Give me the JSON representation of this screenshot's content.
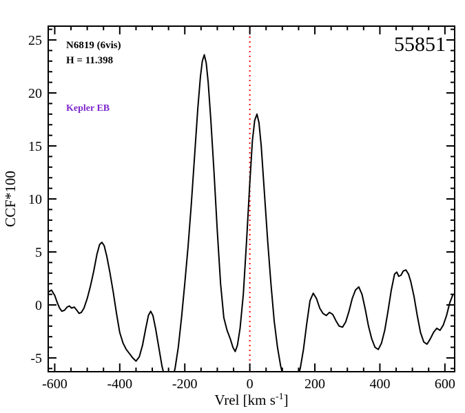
{
  "chart_data": {
    "type": "line",
    "title": "",
    "xlabel": {
      "main": "Vrel [km s",
      "sup": "-1",
      "end": "]"
    },
    "ylabel": "CCF*100",
    "xlim": [
      -620,
      630
    ],
    "ylim": [
      -6.3,
      26.3
    ],
    "x_major_ticks": [
      -600,
      -400,
      -200,
      0,
      200,
      400,
      600
    ],
    "x_minor_step": 50,
    "y_major_ticks": [
      -5,
      0,
      5,
      10,
      15,
      20,
      25
    ],
    "y_minor_step": 1,
    "grid": false,
    "legend": "none",
    "annotations": {
      "cluster": "N6819 (6vis)",
      "magnitude": "H = 11.398",
      "classification": "Kepler EB",
      "classification_color": "#7D26CD",
      "mjd": "55851"
    },
    "reference_line": {
      "x": 0,
      "color": "#FF0000",
      "style": "dotted"
    },
    "series": [
      {
        "name": "CCF",
        "color": "#000000",
        "points": [
          [
            -620,
            1.2
          ],
          [
            -610,
            1.4
          ],
          [
            -600,
            0.9
          ],
          [
            -592,
            0.2
          ],
          [
            -585,
            -0.3
          ],
          [
            -578,
            -0.6
          ],
          [
            -570,
            -0.5
          ],
          [
            -562,
            -0.2
          ],
          [
            -555,
            -0.1
          ],
          [
            -548,
            -0.3
          ],
          [
            -540,
            -0.2
          ],
          [
            -532,
            -0.5
          ],
          [
            -525,
            -0.8
          ],
          [
            -518,
            -0.7
          ],
          [
            -510,
            -0.3
          ],
          [
            -500,
            0.6
          ],
          [
            -490,
            1.8
          ],
          [
            -480,
            3.2
          ],
          [
            -470,
            4.8
          ],
          [
            -462,
            5.7
          ],
          [
            -455,
            5.9
          ],
          [
            -448,
            5.6
          ],
          [
            -440,
            4.6
          ],
          [
            -430,
            3.0
          ],
          [
            -420,
            1.2
          ],
          [
            -410,
            -0.8
          ],
          [
            -400,
            -2.6
          ],
          [
            -390,
            -3.6
          ],
          [
            -380,
            -4.2
          ],
          [
            -370,
            -4.6
          ],
          [
            -360,
            -5.0
          ],
          [
            -350,
            -5.3
          ],
          [
            -340,
            -4.9
          ],
          [
            -330,
            -3.8
          ],
          [
            -320,
            -2.2
          ],
          [
            -312,
            -1.0
          ],
          [
            -305,
            -0.6
          ],
          [
            -298,
            -1.0
          ],
          [
            -290,
            -2.2
          ],
          [
            -280,
            -4.0
          ],
          [
            -270,
            -5.8
          ],
          [
            -260,
            -7.0
          ],
          [
            -250,
            -7.6
          ],
          [
            -240,
            -7.2
          ],
          [
            -230,
            -6.0
          ],
          [
            -220,
            -4.0
          ],
          [
            -210,
            -1.2
          ],
          [
            -200,
            2.0
          ],
          [
            -190,
            5.5
          ],
          [
            -180,
            9.5
          ],
          [
            -170,
            14.0
          ],
          [
            -160,
            18.5
          ],
          [
            -152,
            21.5
          ],
          [
            -146,
            23.0
          ],
          [
            -140,
            23.6
          ],
          [
            -134,
            22.8
          ],
          [
            -128,
            21.0
          ],
          [
            -120,
            17.5
          ],
          [
            -110,
            12.5
          ],
          [
            -100,
            7.0
          ],
          [
            -90,
            2.0
          ],
          [
            -80,
            -1.2
          ],
          [
            -70,
            -2.4
          ],
          [
            -60,
            -3.2
          ],
          [
            -52,
            -4.0
          ],
          [
            -45,
            -4.4
          ],
          [
            -38,
            -3.8
          ],
          [
            -30,
            -2.2
          ],
          [
            -20,
            1.0
          ],
          [
            -10,
            6.0
          ],
          [
            0,
            11.5
          ],
          [
            8,
            15.5
          ],
          [
            15,
            17.4
          ],
          [
            22,
            18.0
          ],
          [
            28,
            17.2
          ],
          [
            35,
            15.0
          ],
          [
            45,
            10.5
          ],
          [
            55,
            6.0
          ],
          [
            65,
            2.0
          ],
          [
            75,
            -1.5
          ],
          [
            85,
            -4.0
          ],
          [
            95,
            -5.8
          ],
          [
            105,
            -7.0
          ],
          [
            115,
            -7.8
          ],
          [
            125,
            -8.0
          ],
          [
            135,
            -7.6
          ],
          [
            145,
            -7.0
          ],
          [
            155,
            -6.0
          ],
          [
            165,
            -4.2
          ],
          [
            175,
            -1.8
          ],
          [
            185,
            0.4
          ],
          [
            195,
            1.1
          ],
          [
            205,
            0.6
          ],
          [
            215,
            -0.3
          ],
          [
            225,
            -0.8
          ],
          [
            235,
            -1.0
          ],
          [
            245,
            -0.7
          ],
          [
            255,
            -0.9
          ],
          [
            265,
            -1.5
          ],
          [
            275,
            -2.0
          ],
          [
            285,
            -2.1
          ],
          [
            295,
            -1.6
          ],
          [
            305,
            -0.6
          ],
          [
            315,
            0.6
          ],
          [
            325,
            1.4
          ],
          [
            335,
            1.7
          ],
          [
            345,
            1.0
          ],
          [
            355,
            -0.4
          ],
          [
            365,
            -2.0
          ],
          [
            375,
            -3.2
          ],
          [
            385,
            -4.0
          ],
          [
            395,
            -4.2
          ],
          [
            405,
            -3.6
          ],
          [
            415,
            -2.4
          ],
          [
            425,
            -0.6
          ],
          [
            435,
            1.4
          ],
          [
            445,
            2.9
          ],
          [
            452,
            3.1
          ],
          [
            458,
            2.7
          ],
          [
            465,
            2.8
          ],
          [
            472,
            3.2
          ],
          [
            480,
            3.3
          ],
          [
            488,
            2.9
          ],
          [
            495,
            2.2
          ],
          [
            505,
            0.8
          ],
          [
            515,
            -1.0
          ],
          [
            525,
            -2.6
          ],
          [
            535,
            -3.5
          ],
          [
            545,
            -3.7
          ],
          [
            555,
            -3.2
          ],
          [
            565,
            -2.6
          ],
          [
            575,
            -2.2
          ],
          [
            585,
            -2.4
          ],
          [
            595,
            -1.9
          ],
          [
            605,
            -1.0
          ],
          [
            615,
            0.2
          ],
          [
            625,
            1.0
          ]
        ]
      }
    ]
  }
}
